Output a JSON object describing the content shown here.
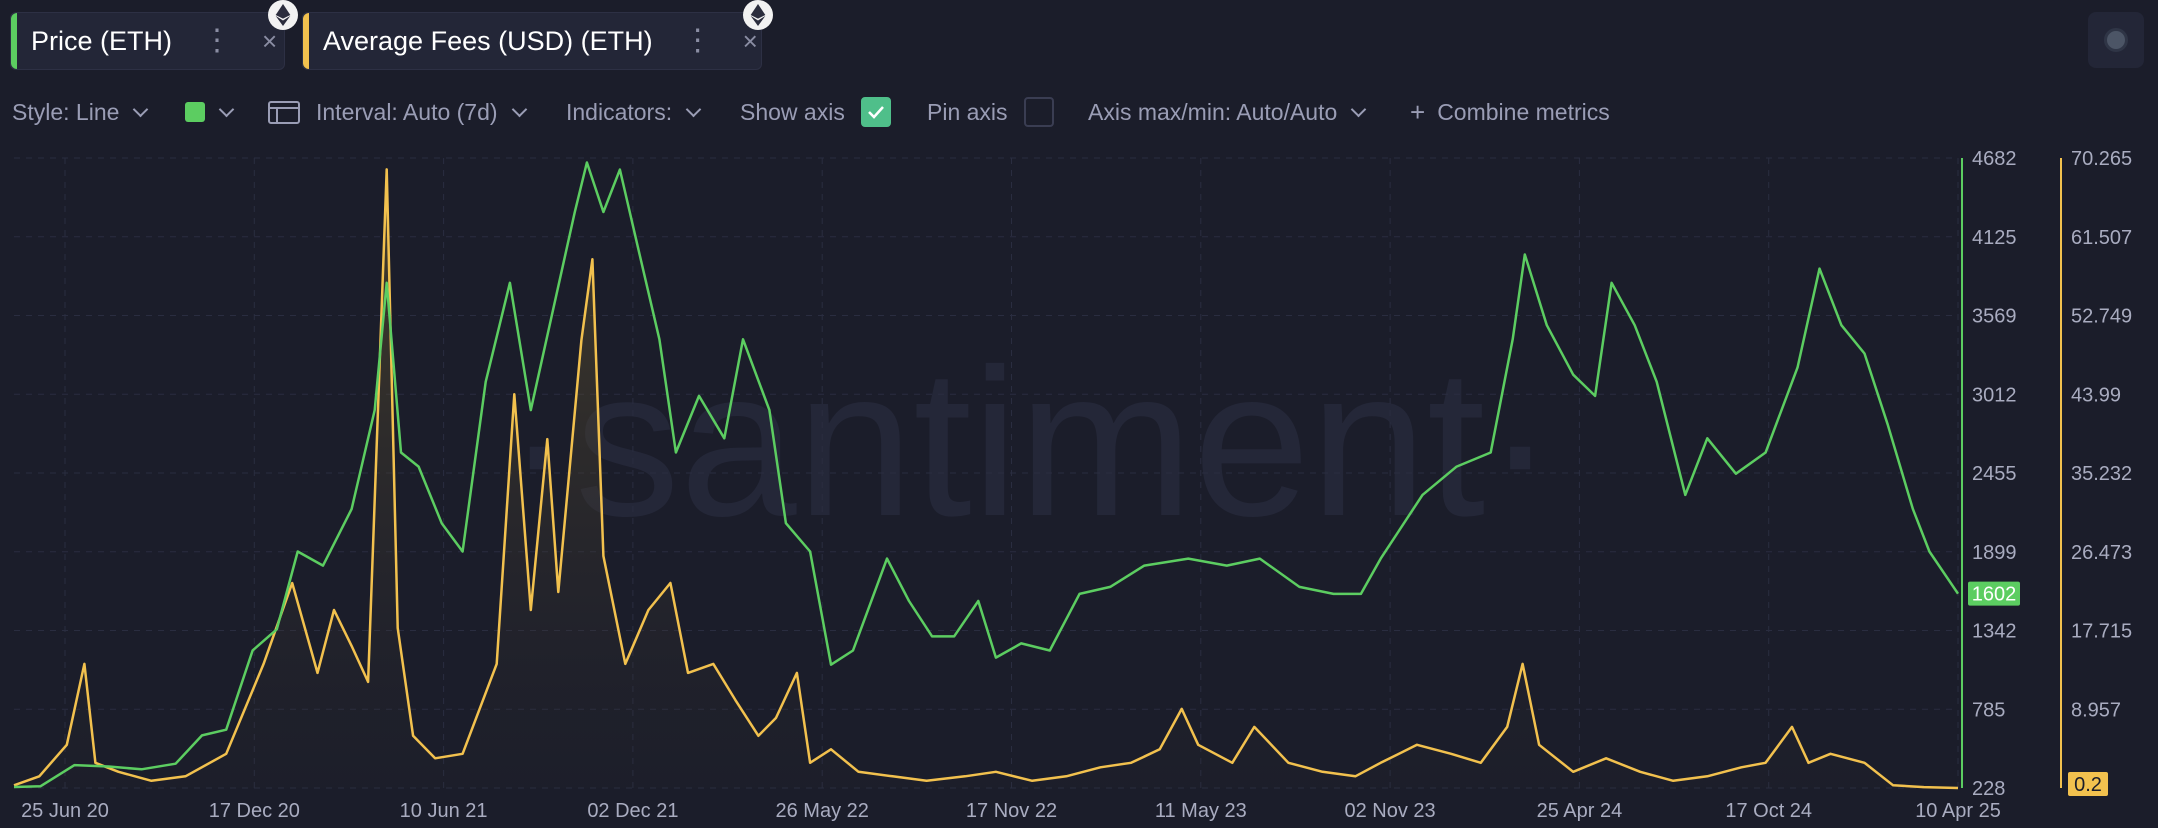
{
  "tabs": [
    {
      "label": "Price (ETH)",
      "accent": "#5ccd61",
      "icon": "ethereum-icon"
    },
    {
      "label": "Average Fees (USD) (ETH)",
      "accent": "#f2c14e",
      "icon": "ethereum-icon"
    }
  ],
  "toolbar": {
    "style": "Style: Line",
    "color_swatch": "#5ccd61",
    "interval": "Interval: Auto (7d)",
    "indicators": "Indicators:",
    "show_axis": "Show axis",
    "show_axis_checked": true,
    "pin_axis": "Pin axis",
    "pin_axis_checked": false,
    "axis_max_min": "Axis max/min: Auto/Auto",
    "combine_metrics": "Combine metrics"
  },
  "chart_data": {
    "type": "line",
    "watermark": "·santiment·",
    "x_tick_labels": [
      "25 Jun 20",
      "17 Dec 20",
      "10 Jun 21",
      "02 Dec 21",
      "26 May 22",
      "17 Nov 22",
      "11 May 23",
      "02 Nov 23",
      "25 Apr 24",
      "17 Oct 24",
      "10 Apr 25"
    ],
    "x_range": [
      "2020-06-07",
      "2025-04-10"
    ],
    "y_axes": [
      {
        "name": "Price (ETH)",
        "side": "right",
        "color": "#5ccd61",
        "ylim": [
          228,
          4682
        ],
        "tick_labels": [
          "228",
          "785",
          "1342",
          "1899",
          "2455",
          "3012",
          "3569",
          "4125",
          "4682"
        ],
        "last_value_label": "1602"
      },
      {
        "name": "Average Fees (USD) (ETH)",
        "side": "right",
        "color": "#f2c14e",
        "ylim": [
          0.2,
          70.265
        ],
        "tick_labels": [
          "0.2",
          "8.957",
          "17.715",
          "26.473",
          "35.232",
          "43.99",
          "52.749",
          "61.507",
          "70.265"
        ],
        "last_value_label": "0.2"
      }
    ],
    "series": [
      {
        "name": "Price (ETH)",
        "color": "#5ccd61",
        "axis": 0,
        "points": [
          [
            "2020-06-07",
            235
          ],
          [
            "2020-07-01",
            240
          ],
          [
            "2020-08-01",
            390
          ],
          [
            "2020-09-01",
            380
          ],
          [
            "2020-10-01",
            360
          ],
          [
            "2020-11-01",
            400
          ],
          [
            "2020-11-25",
            600
          ],
          [
            "2020-12-17",
            640
          ],
          [
            "2021-01-10",
            1200
          ],
          [
            "2021-02-01",
            1350
          ],
          [
            "2021-02-20",
            1900
          ],
          [
            "2021-03-15",
            1800
          ],
          [
            "2021-04-10",
            2200
          ],
          [
            "2021-05-01",
            2900
          ],
          [
            "2021-05-12",
            3800
          ],
          [
            "2021-05-25",
            2600
          ],
          [
            "2021-06-10",
            2500
          ],
          [
            "2021-07-01",
            2100
          ],
          [
            "2021-07-20",
            1900
          ],
          [
            "2021-08-10",
            3100
          ],
          [
            "2021-09-01",
            3800
          ],
          [
            "2021-09-20",
            2900
          ],
          [
            "2021-10-10",
            3600
          ],
          [
            "2021-10-30",
            4300
          ],
          [
            "2021-11-10",
            4650
          ],
          [
            "2021-11-25",
            4300
          ],
          [
            "2021-12-10",
            4600
          ],
          [
            "2021-12-28",
            4000
          ],
          [
            "2022-01-15",
            3400
          ],
          [
            "2022-01-30",
            2600
          ],
          [
            "2022-02-20",
            3000
          ],
          [
            "2022-03-15",
            2700
          ],
          [
            "2022-04-01",
            3400
          ],
          [
            "2022-04-25",
            2900
          ],
          [
            "2022-05-10",
            2100
          ],
          [
            "2022-06-01",
            1900
          ],
          [
            "2022-06-20",
            1100
          ],
          [
            "2022-07-10",
            1200
          ],
          [
            "2022-08-10",
            1850
          ],
          [
            "2022-08-30",
            1550
          ],
          [
            "2022-09-20",
            1300
          ],
          [
            "2022-10-10",
            1300
          ],
          [
            "2022-11-01",
            1550
          ],
          [
            "2022-11-17",
            1150
          ],
          [
            "2022-12-10",
            1250
          ],
          [
            "2023-01-05",
            1200
          ],
          [
            "2023-02-01",
            1600
          ],
          [
            "2023-03-01",
            1650
          ],
          [
            "2023-04-01",
            1800
          ],
          [
            "2023-05-11",
            1850
          ],
          [
            "2023-06-15",
            1800
          ],
          [
            "2023-07-15",
            1850
          ],
          [
            "2023-08-20",
            1650
          ],
          [
            "2023-09-20",
            1600
          ],
          [
            "2023-10-15",
            1600
          ],
          [
            "2023-11-02",
            1850
          ],
          [
            "2023-12-10",
            2300
          ],
          [
            "2024-01-10",
            2500
          ],
          [
            "2024-02-10",
            2600
          ],
          [
            "2024-03-01",
            3400
          ],
          [
            "2024-03-12",
            4000
          ],
          [
            "2024-04-01",
            3500
          ],
          [
            "2024-04-25",
            3150
          ],
          [
            "2024-05-15",
            3000
          ],
          [
            "2024-05-30",
            3800
          ],
          [
            "2024-06-20",
            3500
          ],
          [
            "2024-07-10",
            3100
          ],
          [
            "2024-08-05",
            2300
          ],
          [
            "2024-08-25",
            2700
          ],
          [
            "2024-09-20",
            2450
          ],
          [
            "2024-10-17",
            2600
          ],
          [
            "2024-11-15",
            3200
          ],
          [
            "2024-12-05",
            3900
          ],
          [
            "2024-12-25",
            3500
          ],
          [
            "2025-01-15",
            3300
          ],
          [
            "2025-02-05",
            2800
          ],
          [
            "2025-02-28",
            2200
          ],
          [
            "2025-03-15",
            1900
          ],
          [
            "2025-04-10",
            1602
          ]
        ]
      },
      {
        "name": "Average Fees (USD) (ETH)",
        "color": "#f2c14e",
        "axis": 1,
        "points": [
          [
            "2020-06-07",
            0.5
          ],
          [
            "2020-06-30",
            1.5
          ],
          [
            "2020-07-25",
            5.0
          ],
          [
            "2020-08-10",
            14.0
          ],
          [
            "2020-08-20",
            3.0
          ],
          [
            "2020-09-10",
            2.0
          ],
          [
            "2020-10-10",
            1.0
          ],
          [
            "2020-11-10",
            1.5
          ],
          [
            "2020-12-17",
            4.0
          ],
          [
            "2021-01-20",
            14.0
          ],
          [
            "2021-02-15",
            23.0
          ],
          [
            "2021-03-10",
            13.0
          ],
          [
            "2021-03-25",
            20.0
          ],
          [
            "2021-04-10",
            16.0
          ],
          [
            "2021-04-25",
            12.0
          ],
          [
            "2021-05-12",
            69.0
          ],
          [
            "2021-05-22",
            18.0
          ],
          [
            "2021-06-05",
            6.0
          ],
          [
            "2021-06-25",
            3.5
          ],
          [
            "2021-07-20",
            4.0
          ],
          [
            "2021-08-20",
            14.0
          ],
          [
            "2021-09-05",
            44.0
          ],
          [
            "2021-09-20",
            20.0
          ],
          [
            "2021-10-05",
            39.0
          ],
          [
            "2021-10-15",
            22.0
          ],
          [
            "2021-11-05",
            50.0
          ],
          [
            "2021-11-15",
            59.0
          ],
          [
            "2021-11-25",
            26.0
          ],
          [
            "2021-12-15",
            14.0
          ],
          [
            "2022-01-05",
            20.0
          ],
          [
            "2022-01-25",
            23.0
          ],
          [
            "2022-02-10",
            13.0
          ],
          [
            "2022-03-05",
            14.0
          ],
          [
            "2022-03-25",
            10.0
          ],
          [
            "2022-04-15",
            6.0
          ],
          [
            "2022-05-01",
            8.0
          ],
          [
            "2022-05-20",
            13.0
          ],
          [
            "2022-06-01",
            3.0
          ],
          [
            "2022-06-20",
            4.5
          ],
          [
            "2022-07-15",
            2.0
          ],
          [
            "2022-08-15",
            1.5
          ],
          [
            "2022-09-15",
            1.0
          ],
          [
            "2022-10-20",
            1.5
          ],
          [
            "2022-11-17",
            2.0
          ],
          [
            "2022-12-20",
            1.0
          ],
          [
            "2023-01-20",
            1.5
          ],
          [
            "2023-02-20",
            2.5
          ],
          [
            "2023-03-20",
            3.0
          ],
          [
            "2023-04-15",
            4.5
          ],
          [
            "2023-05-05",
            9.0
          ],
          [
            "2023-05-20",
            5.0
          ],
          [
            "2023-06-20",
            3.0
          ],
          [
            "2023-07-10",
            7.0
          ],
          [
            "2023-08-10",
            3.0
          ],
          [
            "2023-09-10",
            2.0
          ],
          [
            "2023-10-10",
            1.5
          ],
          [
            "2023-11-02",
            3.0
          ],
          [
            "2023-12-05",
            5.0
          ],
          [
            "2024-01-05",
            4.0
          ],
          [
            "2024-02-01",
            3.0
          ],
          [
            "2024-02-25",
            7.0
          ],
          [
            "2024-03-10",
            14.0
          ],
          [
            "2024-03-25",
            5.0
          ],
          [
            "2024-04-25",
            2.0
          ],
          [
            "2024-05-25",
            3.5
          ],
          [
            "2024-06-25",
            2.0
          ],
          [
            "2024-07-25",
            1.0
          ],
          [
            "2024-08-25",
            1.5
          ],
          [
            "2024-09-25",
            2.5
          ],
          [
            "2024-10-17",
            3.0
          ],
          [
            "2024-11-10",
            7.0
          ],
          [
            "2024-11-25",
            3.0
          ],
          [
            "2024-12-15",
            4.0
          ],
          [
            "2025-01-15",
            3.0
          ],
          [
            "2025-02-10",
            0.5
          ],
          [
            "2025-03-10",
            0.3
          ],
          [
            "2025-04-10",
            0.2
          ]
        ]
      }
    ]
  }
}
